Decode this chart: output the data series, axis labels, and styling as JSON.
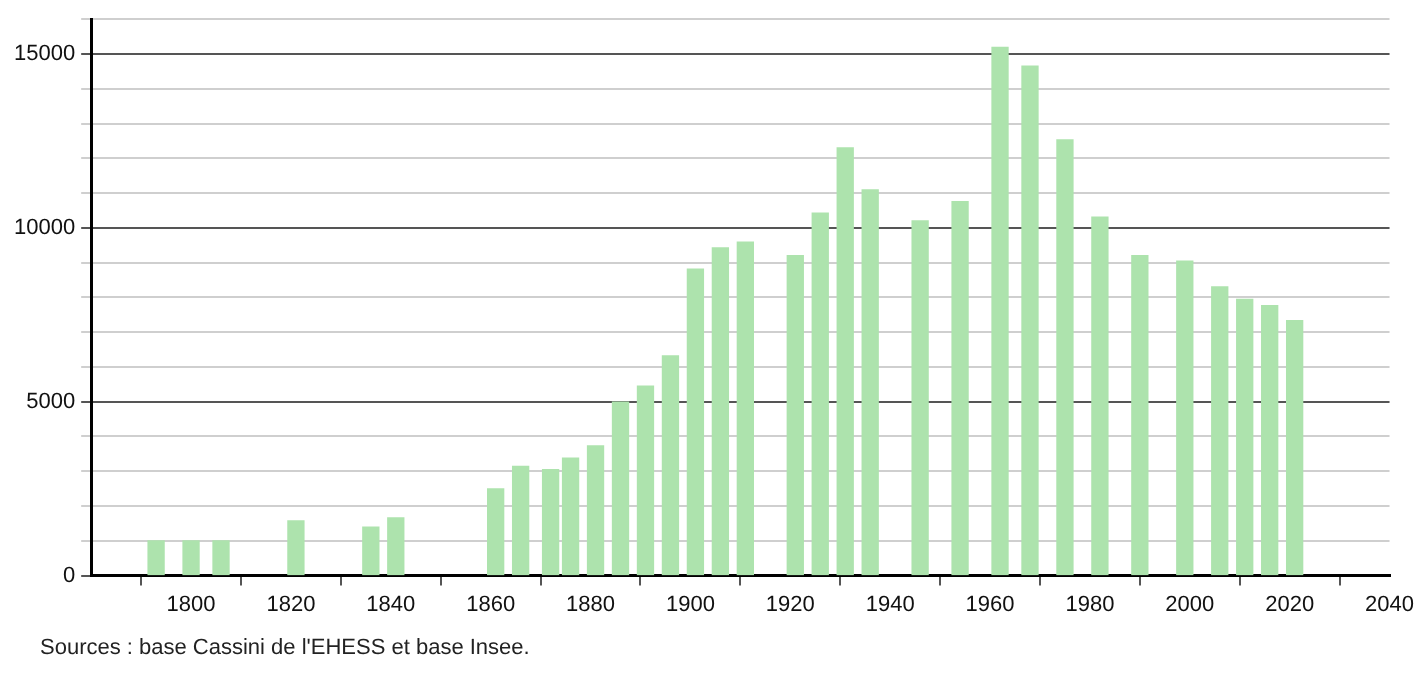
{
  "chart_data": {
    "type": "bar",
    "x": [
      1793,
      1800,
      1806,
      1821,
      1836,
      1841,
      1861,
      1866,
      1872,
      1876,
      1881,
      1886,
      1891,
      1896,
      1901,
      1906,
      1911,
      1921,
      1926,
      1931,
      1936,
      1946,
      1954,
      1962,
      1968,
      1975,
      1982,
      1990,
      1999,
      2006,
      2011,
      2016,
      2021
    ],
    "values": [
      1000,
      1000,
      1000,
      1570,
      1390,
      1660,
      2490,
      3140,
      3050,
      3380,
      3730,
      4990,
      5450,
      6320,
      8810,
      9420,
      9590,
      9200,
      10420,
      12300,
      11090,
      10200,
      10750,
      15190,
      14650,
      12530,
      10310,
      9200,
      9040,
      8300,
      7940,
      7760,
      7330
    ],
    "color": "#ade3ad",
    "xlim": [
      1780,
      2040
    ],
    "xticks": [
      1800,
      1820,
      1840,
      1860,
      1880,
      1900,
      1920,
      1940,
      1960,
      1980,
      2000,
      2020,
      2040
    ],
    "ylim": [
      0,
      16000
    ],
    "yticks": [
      0,
      {
        "value": 1000,
        "label": null
      },
      {
        "value": 2000,
        "label": null
      },
      {
        "value": 3000,
        "label": null
      },
      {
        "value": 4000,
        "label": null
      },
      5000,
      {
        "value": 6000,
        "label": null
      },
      {
        "value": 7000,
        "label": null
      },
      {
        "value": 8000,
        "label": null
      },
      {
        "value": 9000,
        "label": null
      },
      10000,
      {
        "value": 11000,
        "label": null
      },
      {
        "value": 12000,
        "label": null
      },
      {
        "value": 13000,
        "label": null
      },
      {
        "value": 14000,
        "label": null
      },
      15000,
      {
        "value": 16000,
        "label": null
      }
    ],
    "grid": "y",
    "annotations": [
      "Sources : base Cassini de l'EHESS et base Insee."
    ]
  }
}
